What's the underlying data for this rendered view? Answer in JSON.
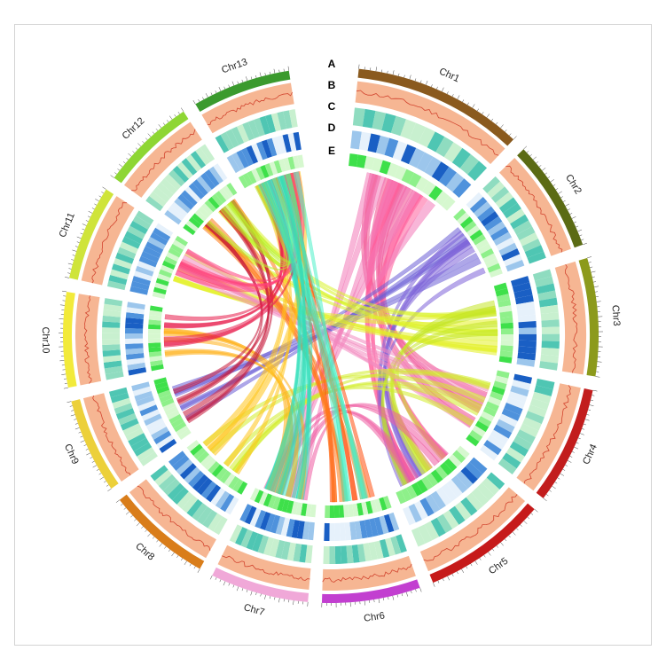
{
  "figure": {
    "description_free": true,
    "track_labels": [
      "A",
      "B",
      "C",
      "D",
      "E"
    ]
  },
  "chromosomes": [
    {
      "name": "Chr1",
      "color": "#8a5a1e",
      "size": 52,
      "ticks": 10
    },
    {
      "name": "Chr2",
      "color": "#5b6b14",
      "size": 34,
      "ticks": 8
    },
    {
      "name": "Chr3",
      "color": "#8c9a1c",
      "size": 36,
      "ticks": 8
    },
    {
      "name": "Chr4",
      "color": "#c21d1d",
      "size": 36,
      "ticks": 8
    },
    {
      "name": "Chr5",
      "color": "#c61a1a",
      "size": 38,
      "ticks": 8
    },
    {
      "name": "Chr6",
      "color": "#c23fd0",
      "size": 30,
      "ticks": 7
    },
    {
      "name": "Chr7",
      "color": "#f0a8d8",
      "size": 30,
      "ticks": 7
    },
    {
      "name": "Chr8",
      "color": "#d97d1a",
      "size": 32,
      "ticks": 7
    },
    {
      "name": "Chr9",
      "color": "#ecd03a",
      "size": 29,
      "ticks": 7
    },
    {
      "name": "Chr10",
      "color": "#f2ea3a",
      "size": 29,
      "ticks": 7
    },
    {
      "name": "Chr11",
      "color": "#cfe43a",
      "size": 29,
      "ticks": 7
    },
    {
      "name": "Chr12",
      "color": "#8ed634",
      "size": 29,
      "ticks": 7
    },
    {
      "name": "Chr13",
      "color": "#3b9a2e",
      "size": 30,
      "ticks": 7
    }
  ],
  "links": [
    {
      "from": 0,
      "to": 3,
      "color": "#f04a8c"
    },
    {
      "from": 0,
      "to": 4,
      "color": "#ff5c9a"
    },
    {
      "from": 0,
      "to": 6,
      "color": "#f27ab8"
    },
    {
      "from": 1,
      "to": 8,
      "color": "#6b5fd6"
    },
    {
      "from": 1,
      "to": 4,
      "color": "#7e63d8"
    },
    {
      "from": 2,
      "to": 11,
      "color": "#d8f22a"
    },
    {
      "from": 2,
      "to": 10,
      "color": "#e4f026"
    },
    {
      "from": 2,
      "to": 4,
      "color": "#c4e628"
    },
    {
      "from": 3,
      "to": 10,
      "color": "#f28ac0"
    },
    {
      "from": 3,
      "to": 7,
      "color": "#d2ec2a"
    },
    {
      "from": 4,
      "to": 6,
      "color": "#ef5ca2"
    },
    {
      "from": 5,
      "to": 12,
      "color": "#ff5010"
    },
    {
      "from": 5,
      "to": 11,
      "color": "#ff7a1a"
    },
    {
      "from": 6,
      "to": 12,
      "color": "#3de8c4"
    },
    {
      "from": 6,
      "to": 9,
      "color": "#ffb01a"
    },
    {
      "from": 7,
      "to": 12,
      "color": "#ffc51a"
    },
    {
      "from": 8,
      "to": 11,
      "color": "#c71a3a"
    },
    {
      "from": 9,
      "to": 12,
      "color": "#e81e4c"
    },
    {
      "from": 10,
      "to": 12,
      "color": "#ff3f7a"
    },
    {
      "from": 11,
      "to": 12,
      "color": "#b8f02a"
    },
    {
      "from": 12,
      "to": 5,
      "color": "#4cf0c8"
    },
    {
      "from": 12,
      "to": 6,
      "color": "#34dcb8"
    }
  ]
}
